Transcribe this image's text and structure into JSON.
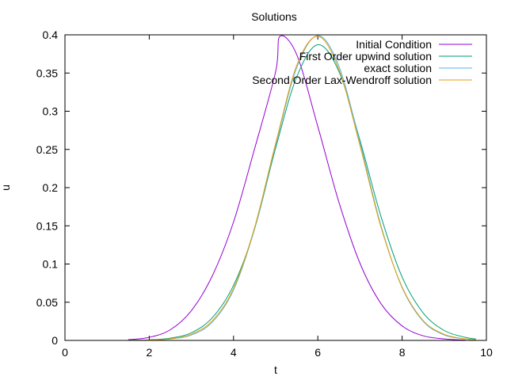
{
  "chart_data": {
    "type": "line",
    "title": "Solutions",
    "xlabel": "t",
    "ylabel": "u",
    "xlim": [
      0,
      10
    ],
    "ylim": [
      0,
      0.4
    ],
    "xticks": [
      0,
      2,
      4,
      6,
      8,
      10
    ],
    "xtick_labels": [
      "0",
      "2",
      "4",
      "6",
      "8",
      "10"
    ],
    "yticks": [
      0,
      0.05,
      0.1,
      0.15,
      0.2,
      0.25,
      0.3,
      0.35,
      0.4
    ],
    "ytick_labels": [
      "0",
      "0.05",
      "0.1",
      "0.15",
      "0.2",
      "0.25",
      "0.3",
      "0.35",
      "0.4"
    ],
    "grid": false,
    "legend_position": "top-right",
    "x": [
      1.5,
      2.0,
      2.5,
      3.0,
      3.5,
      4.0,
      4.5,
      5.0,
      5.5,
      6.0,
      6.5,
      7.0,
      7.5,
      8.0,
      8.5,
      9.0,
      9.5,
      9.75
    ],
    "series": [
      {
        "name": "Initial Condition",
        "color": "#9400d3",
        "x": [
          1.5,
          2.0,
          2.5,
          3.0,
          3.5,
          4.0,
          4.5,
          5.0,
          5.1,
          5.5,
          6.0,
          6.5,
          7.0,
          7.5,
          8.0,
          8.5,
          9.0,
          9.5
        ],
        "values": [
          0.001,
          0.004,
          0.014,
          0.039,
          0.085,
          0.155,
          0.251,
          0.352,
          0.398,
          0.374,
          0.28,
          0.181,
          0.101,
          0.048,
          0.019,
          0.006,
          0.002,
          0.0005
        ]
      },
      {
        "name": "First Order upwind solution",
        "color": "#009e73",
        "values": [
          0.0002,
          0.0008,
          0.003,
          0.01,
          0.03,
          0.072,
          0.146,
          0.252,
          0.345,
          0.387,
          0.352,
          0.262,
          0.162,
          0.083,
          0.036,
          0.013,
          0.004,
          0.002
        ]
      },
      {
        "name": "exact solution",
        "color": "#56b4e9",
        "values": [
          0.0001,
          0.0004,
          0.002,
          0.007,
          0.024,
          0.066,
          0.146,
          0.256,
          0.357,
          0.399,
          0.359,
          0.259,
          0.15,
          0.069,
          0.025,
          0.007,
          0.002,
          0.001
        ]
      },
      {
        "name": "Second Order Lax-Wendroff solution",
        "color": "#e69f00",
        "values": [
          0.0001,
          0.0005,
          0.002,
          0.008,
          0.026,
          0.068,
          0.148,
          0.258,
          0.36,
          0.398,
          0.355,
          0.255,
          0.148,
          0.07,
          0.026,
          0.008,
          0.002,
          0.001
        ]
      }
    ]
  }
}
